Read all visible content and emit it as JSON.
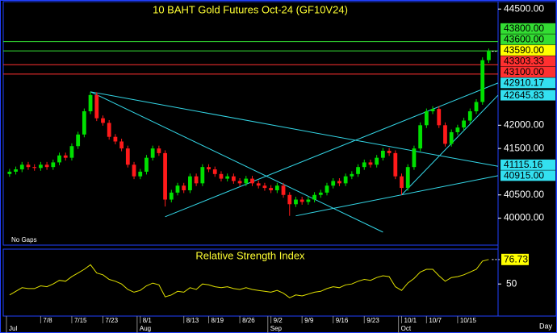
{
  "chart_data": {
    "type": "candlestick",
    "title": "10 BAHT Gold Futures Oct-24 (GF10V24)",
    "corner_text": "No Gaps",
    "x_unit_label": "Day",
    "categories": [
      null,
      null,
      null,
      null,
      null,
      "7/8",
      null,
      null,
      null,
      null,
      "7/15",
      null,
      null,
      null,
      null,
      "7/23",
      null,
      null,
      null,
      null,
      null,
      "8/1",
      null,
      null,
      null,
      null,
      null,
      null,
      "8/13",
      null,
      null,
      null,
      "8/19",
      null,
      null,
      null,
      null,
      "8/26",
      null,
      null,
      null,
      null,
      "9/2",
      null,
      null,
      null,
      null,
      "9/9",
      null,
      null,
      null,
      null,
      "9/16",
      null,
      null,
      null,
      null,
      "9/23",
      null,
      null,
      null,
      null,
      null,
      "10/1",
      null,
      null,
      null,
      "10/7",
      null,
      null,
      null,
      null,
      "10/15",
      null,
      null,
      null,
      null,
      null
    ],
    "category_groups": [
      {
        "label": "Jul",
        "start": 0
      },
      {
        "label": "Aug",
        "start": 21
      },
      {
        "label": "Sep",
        "start": 42
      },
      {
        "label": "Oct",
        "start": 63
      }
    ],
    "open": [
      40950,
      41000,
      41050,
      41150,
      41100,
      41080,
      41150,
      41100,
      41200,
      41350,
      41300,
      41550,
      41800,
      42300,
      42650,
      42150,
      42050,
      41750,
      41650,
      41500,
      41150,
      40900,
      41000,
      41300,
      41500,
      41400,
      40400,
      40550,
      40700,
      40600,
      40900,
      40750,
      41100,
      41050,
      40950,
      40850,
      40900,
      40800,
      40750,
      40850,
      40750,
      40700,
      40650,
      40600,
      40700,
      40500,
      40300,
      40400,
      40350,
      40400,
      40500,
      40550,
      40700,
      40800,
      40750,
      40900,
      40950,
      41100,
      41200,
      41150,
      41300,
      41450,
      41400,
      40900,
      40650,
      41100,
      41500,
      42000,
      42300,
      42350,
      42000,
      41600,
      41850,
      41950,
      42100,
      42300,
      42500,
      43400
    ],
    "high": [
      41060,
      41110,
      41210,
      41210,
      41160,
      41210,
      41210,
      41260,
      41410,
      41410,
      41610,
      41860,
      42360,
      42720,
      42710,
      42210,
      42110,
      41810,
      41710,
      41560,
      41210,
      41060,
      41360,
      41560,
      41560,
      41460,
      40610,
      40760,
      40760,
      40960,
      40960,
      41160,
      41160,
      41110,
      41010,
      40960,
      40960,
      40860,
      40910,
      40910,
      40810,
      40760,
      40710,
      40760,
      40760,
      40560,
      40460,
      40460,
      40460,
      40560,
      40610,
      40760,
      40860,
      40860,
      40960,
      41010,
      41160,
      41260,
      41260,
      41360,
      41510,
      41510,
      41460,
      40960,
      41160,
      41560,
      42060,
      42360,
      42410,
      42410,
      42060,
      41910,
      42010,
      42160,
      42360,
      42560,
      43460,
      43650
    ],
    "low": [
      40890,
      40940,
      40990,
      41040,
      41020,
      41020,
      41040,
      41040,
      41140,
      41240,
      41240,
      41490,
      41740,
      42240,
      42090,
      41990,
      41690,
      41590,
      41440,
      41090,
      40840,
      40840,
      40940,
      41240,
      41340,
      40250,
      40340,
      40490,
      40540,
      40540,
      40690,
      40690,
      40990,
      40890,
      40790,
      40790,
      40740,
      40690,
      40690,
      40690,
      40640,
      40590,
      40540,
      40540,
      40440,
      40050,
      40240,
      40290,
      40290,
      40340,
      40440,
      40490,
      40640,
      40690,
      40690,
      40840,
      40890,
      41040,
      41090,
      41090,
      41240,
      41340,
      40840,
      40500,
      40590,
      41040,
      41440,
      41940,
      42240,
      41940,
      41540,
      41540,
      41790,
      41890,
      42040,
      42240,
      42440,
      43340
    ],
    "close": [
      41000,
      41050,
      41150,
      41100,
      41080,
      41150,
      41100,
      41200,
      41350,
      41300,
      41550,
      41800,
      42300,
      42650,
      42150,
      42050,
      41750,
      41650,
      41500,
      41150,
      40900,
      41000,
      41300,
      41500,
      41400,
      40400,
      40550,
      40700,
      40600,
      40900,
      40750,
      41100,
      41050,
      40950,
      40850,
      40900,
      40800,
      40750,
      40850,
      40750,
      40700,
      40650,
      40600,
      40700,
      40500,
      40300,
      40400,
      40350,
      40400,
      40500,
      40550,
      40700,
      40800,
      40750,
      40900,
      40950,
      41100,
      41200,
      41150,
      41300,
      41450,
      41400,
      40900,
      40650,
      41100,
      41500,
      42000,
      42300,
      42350,
      42000,
      41600,
      41850,
      41950,
      42100,
      42300,
      42500,
      43400,
      43590
    ],
    "up_color": "#00e000",
    "down_color": "#ff1a1a",
    "ylim": [
      39420,
      44660
    ],
    "yticks": [
      {
        "value": 40000,
        "label": "40000.00"
      },
      {
        "value": 40500,
        "label": "40500.00"
      },
      {
        "value": 41500,
        "label": "41500.00"
      },
      {
        "value": 42000,
        "label": "42000.00"
      },
      {
        "value": 44500,
        "label": "44500.00"
      }
    ],
    "levels": [
      {
        "value": 43800,
        "label": "43800.00",
        "color": "#33dd33",
        "line": true
      },
      {
        "value": 43600,
        "label": "43600.00",
        "color": "#33dd33",
        "line": true
      },
      {
        "value": 43590,
        "label": "43590.00",
        "color": "#ffff00",
        "line": false
      },
      {
        "value": 43303.33,
        "label": "43303.33",
        "color": "#ff3030",
        "line": true
      },
      {
        "value": 43100,
        "label": "43100.00",
        "color": "#ff3030",
        "line": true
      },
      {
        "value": 42910.17,
        "label": "42910.17",
        "color": "#33e0f0",
        "line": false
      },
      {
        "value": 42645.83,
        "label": "42645.83",
        "color": "#33e0f0",
        "line": false
      },
      {
        "value": 41115.16,
        "label": "41115.16",
        "color": "#33e0f0",
        "line": false
      },
      {
        "value": 40915,
        "label": "40915.00",
        "color": "#33e0f0",
        "line": false
      }
    ],
    "trendline_color": "#33d6e6",
    "trendlines": [
      {
        "from": [
          13,
          42720
        ],
        "to": [
          78.5,
          41115.16
        ]
      },
      {
        "from": [
          13,
          42720
        ],
        "to": [
          60,
          39700
        ]
      },
      {
        "from": [
          25,
          40030
        ],
        "to": [
          78.5,
          42910.17
        ]
      },
      {
        "from": [
          46,
          40050
        ],
        "to": [
          78.5,
          40915
        ]
      },
      {
        "from": [
          63,
          40500
        ],
        "to": [
          78.5,
          42645.83
        ]
      }
    ],
    "rsi": {
      "title": "Relative Strength Index",
      "color": "#e0e000",
      "ylim": [
        15,
        88
      ],
      "yticks": [
        50
      ],
      "values": [
        38,
        42,
        46,
        45,
        45,
        48,
        47,
        50,
        54,
        53,
        58,
        62,
        66,
        71,
        62,
        60,
        55,
        53,
        50,
        44,
        41,
        43,
        48,
        51,
        49,
        36,
        38,
        42,
        41,
        46,
        44,
        50,
        49,
        47,
        46,
        47,
        45,
        44,
        46,
        44,
        43,
        42,
        41,
        43,
        40,
        35,
        38,
        37,
        39,
        41,
        42,
        45,
        47,
        46,
        49,
        50,
        53,
        55,
        54,
        57,
        59,
        58,
        47,
        43,
        51,
        56,
        63,
        66,
        66,
        59,
        53,
        57,
        58,
        60,
        63,
        66,
        75,
        76.73
      ]
    }
  }
}
